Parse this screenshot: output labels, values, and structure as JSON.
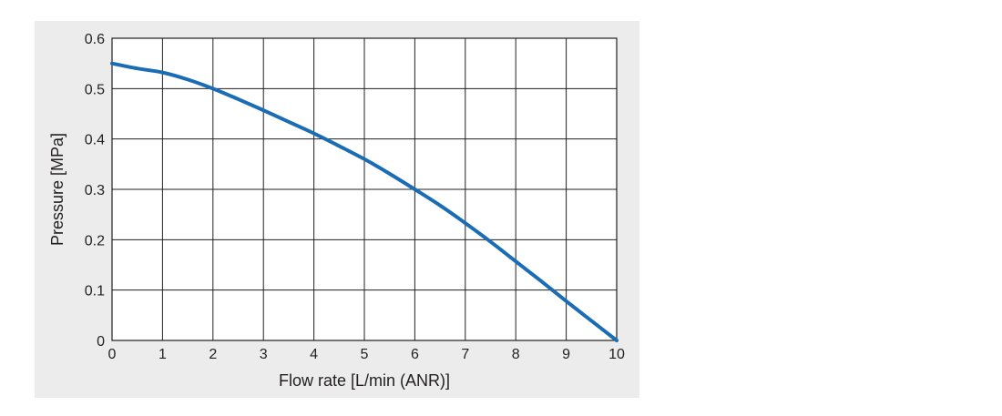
{
  "chart_data": {
    "type": "line",
    "title": "",
    "xlabel": "Flow rate [L/min (ANR)]",
    "ylabel": "Pressure [MPa]",
    "xlim": [
      0,
      10
    ],
    "ylim": [
      0,
      0.6
    ],
    "x_ticks": [
      "0",
      "1",
      "2",
      "3",
      "4",
      "5",
      "6",
      "7",
      "8",
      "9",
      "10"
    ],
    "y_ticks": [
      "0",
      "0.1",
      "0.2",
      "0.3",
      "0.4",
      "0.5",
      "0.6"
    ],
    "grid": true,
    "line_color": "#1a6db5",
    "series": [
      {
        "x": [
          0,
          0.5,
          1,
          1.5,
          2,
          2.5,
          3,
          3.5,
          4,
          4.5,
          5,
          5.5,
          6,
          6.5,
          7,
          7.5,
          8,
          8.5,
          9,
          9.5,
          10
        ],
        "y": [
          0.55,
          0.54,
          0.532,
          0.518,
          0.5,
          0.479,
          0.457,
          0.434,
          0.411,
          0.386,
          0.36,
          0.331,
          0.3,
          0.268,
          0.233,
          0.196,
          0.157,
          0.118,
          0.078,
          0.039,
          0.0
        ]
      }
    ]
  }
}
